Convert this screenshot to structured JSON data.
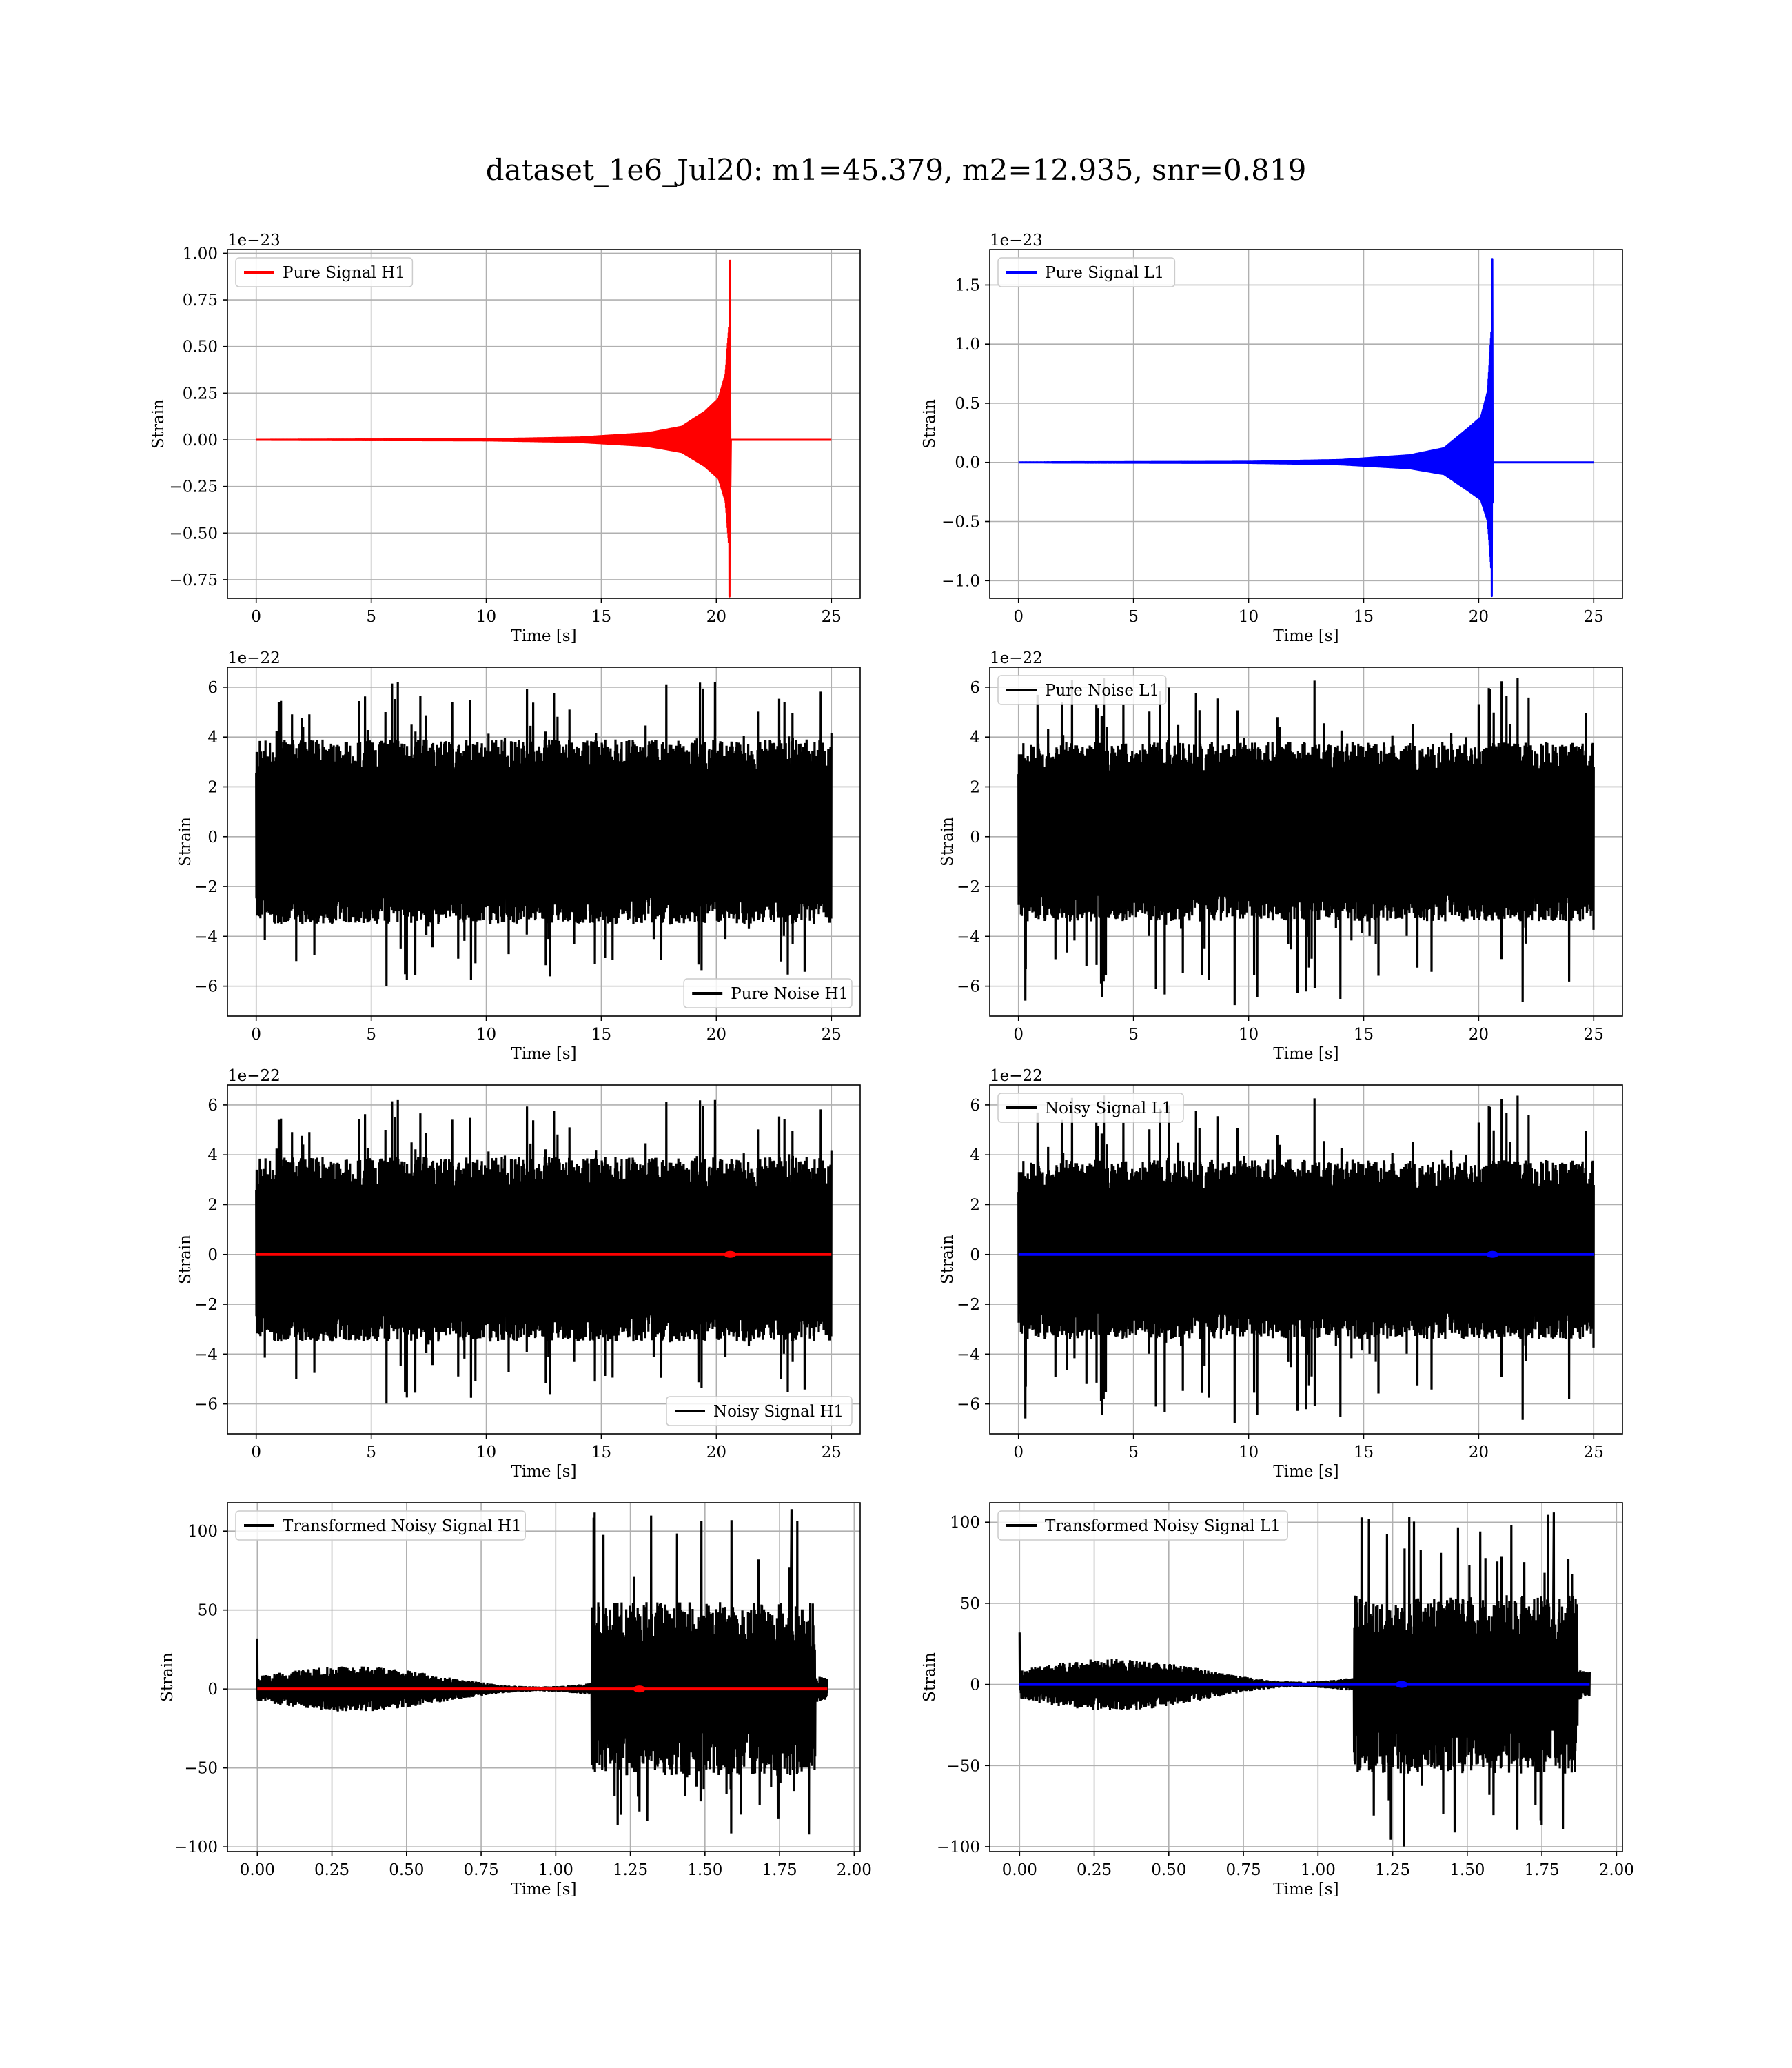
{
  "figure_title": "dataset_1e6_Jul20: m1=45.379, m2=12.935, snr=0.819",
  "chart_data": [
    {
      "type": "line",
      "id": "pure_signal_h1",
      "title": "",
      "xlabel": "Time [s]",
      "ylabel": "Strain",
      "offset_text": "1e−23",
      "xlim": [
        -1.25,
        26.25
      ],
      "ylim": [
        -0.85,
        1.02
      ],
      "xticks": [
        0,
        5,
        10,
        15,
        20,
        25
      ],
      "xtick_labels": [
        "0",
        "5",
        "10",
        "15",
        "20",
        "25"
      ],
      "yticks": [
        -0.75,
        -0.5,
        -0.25,
        0,
        0.25,
        0.5,
        0.75,
        1.0
      ],
      "ytick_labels": [
        "−0.75",
        "−0.50",
        "−0.25",
        "0.00",
        "0.25",
        "0.50",
        "0.75",
        "1.00"
      ],
      "grid": true,
      "legend_position": "upper left",
      "series": [
        {
          "name": "Pure Signal H1",
          "color": "#ff0000",
          "kind": "chirp",
          "t_start": 0,
          "t_merge": 20.6,
          "t_end": 25,
          "peak_pos": 0.96,
          "peak_neg": -0.84,
          "envelope": [
            [
              0,
              0
            ],
            [
              10,
              0.003
            ],
            [
              14,
              0.012
            ],
            [
              17,
              0.035
            ],
            [
              18.5,
              0.07
            ],
            [
              19.5,
              0.15
            ],
            [
              20.1,
              0.22
            ],
            [
              20.4,
              0.35
            ],
            [
              20.55,
              0.6
            ]
          ]
        }
      ]
    },
    {
      "type": "line",
      "id": "pure_signal_l1",
      "title": "",
      "xlabel": "Time [s]",
      "ylabel": "Strain",
      "offset_text": "1e−23",
      "xlim": [
        -1.25,
        26.25
      ],
      "ylim": [
        -1.15,
        1.8
      ],
      "xticks": [
        0,
        5,
        10,
        15,
        20,
        25
      ],
      "xtick_labels": [
        "0",
        "5",
        "10",
        "15",
        "20",
        "25"
      ],
      "yticks": [
        -1.0,
        -0.5,
        0,
        0.5,
        1.0,
        1.5
      ],
      "ytick_labels": [
        "−1.0",
        "−0.5",
        "0.0",
        "0.5",
        "1.0",
        "1.5"
      ],
      "grid": true,
      "legend_position": "upper left",
      "series": [
        {
          "name": "Pure Signal L1",
          "color": "#0000ff",
          "kind": "chirp",
          "t_start": 0,
          "t_merge": 20.6,
          "t_end": 25,
          "peak_pos": 1.72,
          "peak_neg": -1.13,
          "envelope": [
            [
              0,
              0
            ],
            [
              10,
              0.005
            ],
            [
              14,
              0.02
            ],
            [
              17,
              0.06
            ],
            [
              18.5,
              0.12
            ],
            [
              19.5,
              0.28
            ],
            [
              20.1,
              0.38
            ],
            [
              20.4,
              0.6
            ],
            [
              20.55,
              1.1
            ]
          ]
        }
      ]
    },
    {
      "type": "line",
      "id": "pure_noise_h1",
      "title": "",
      "xlabel": "Time [s]",
      "ylabel": "Strain",
      "offset_text": "1e−22",
      "xlim": [
        -1.25,
        26.25
      ],
      "ylim": [
        -7.2,
        6.8
      ],
      "xticks": [
        0,
        5,
        10,
        15,
        20,
        25
      ],
      "xtick_labels": [
        "0",
        "5",
        "10",
        "15",
        "20",
        "25"
      ],
      "yticks": [
        -6,
        -4,
        -2,
        0,
        2,
        4,
        6
      ],
      "ytick_labels": [
        "−6",
        "−4",
        "−2",
        "0",
        "2",
        "4",
        "6"
      ],
      "grid": true,
      "legend_position": "lower right",
      "series": [
        {
          "name": "Pure Noise H1",
          "color": "#000000",
          "kind": "noise",
          "t_start": 0,
          "t_end": 25,
          "band": [
            -3.5,
            3.9
          ],
          "spike_max": 6.2,
          "spike_min": -6.0,
          "seed": 11
        }
      ]
    },
    {
      "type": "line",
      "id": "pure_noise_l1",
      "title": "",
      "xlabel": "Time [s]",
      "ylabel": "Strain",
      "offset_text": "1e−22",
      "xlim": [
        -1.25,
        26.25
      ],
      "ylim": [
        -7.2,
        6.8
      ],
      "xticks": [
        0,
        5,
        10,
        15,
        20,
        25
      ],
      "xtick_labels": [
        "0",
        "5",
        "10",
        "15",
        "20",
        "25"
      ],
      "yticks": [
        -6,
        -4,
        -2,
        0,
        2,
        4,
        6
      ],
      "ytick_labels": [
        "−6",
        "−4",
        "−2",
        "0",
        "2",
        "4",
        "6"
      ],
      "grid": true,
      "legend_position": "upper left",
      "series": [
        {
          "name": "Pure Noise L1",
          "color": "#000000",
          "kind": "noise",
          "t_start": 0,
          "t_end": 25,
          "band": [
            -3.4,
            3.8
          ],
          "spike_max": 6.5,
          "spike_min": -6.8,
          "seed": 23
        }
      ]
    },
    {
      "type": "line",
      "id": "noisy_signal_h1",
      "title": "",
      "xlabel": "Time [s]",
      "ylabel": "Strain",
      "offset_text": "1e−22",
      "xlim": [
        -1.25,
        26.25
      ],
      "ylim": [
        -7.2,
        6.8
      ],
      "xticks": [
        0,
        5,
        10,
        15,
        20,
        25
      ],
      "xtick_labels": [
        "0",
        "5",
        "10",
        "15",
        "20",
        "25"
      ],
      "yticks": [
        -6,
        -4,
        -2,
        0,
        2,
        4,
        6
      ],
      "ytick_labels": [
        "−6",
        "−4",
        "−2",
        "0",
        "2",
        "4",
        "6"
      ],
      "grid": true,
      "legend_position": "lower right",
      "series": [
        {
          "name": "Noisy Signal H1",
          "color": "#000000",
          "kind": "noise",
          "t_start": 0,
          "t_end": 25,
          "band": [
            -3.5,
            3.9
          ],
          "spike_max": 6.2,
          "spike_min": -6.0,
          "seed": 11
        },
        {
          "color": "#ff0000",
          "kind": "flat",
          "t_start": 0,
          "t_end": 25,
          "bump_at": 20.6
        }
      ]
    },
    {
      "type": "line",
      "id": "noisy_signal_l1",
      "title": "",
      "xlabel": "Time [s]",
      "ylabel": "Strain",
      "offset_text": "1e−22",
      "xlim": [
        -1.25,
        26.25
      ],
      "ylim": [
        -7.2,
        6.8
      ],
      "xticks": [
        0,
        5,
        10,
        15,
        20,
        25
      ],
      "xtick_labels": [
        "0",
        "5",
        "10",
        "15",
        "20",
        "25"
      ],
      "yticks": [
        -6,
        -4,
        -2,
        0,
        2,
        4,
        6
      ],
      "ytick_labels": [
        "−6",
        "−4",
        "−2",
        "0",
        "2",
        "4",
        "6"
      ],
      "grid": true,
      "legend_position": "upper left",
      "series": [
        {
          "name": "Noisy Signal L1",
          "color": "#000000",
          "kind": "noise",
          "t_start": 0,
          "t_end": 25,
          "band": [
            -3.4,
            3.8
          ],
          "spike_max": 6.5,
          "spike_min": -6.8,
          "seed": 23
        },
        {
          "color": "#0000ff",
          "kind": "flat",
          "t_start": 0,
          "t_end": 25,
          "bump_at": 20.6
        }
      ]
    },
    {
      "type": "line",
      "id": "transformed_noisy_signal_h1",
      "title": "",
      "xlabel": "Time [s]",
      "ylabel": "Strain",
      "offset_text": "",
      "xlim": [
        -0.1,
        2.02
      ],
      "ylim": [
        -103,
        118
      ],
      "xticks": [
        0,
        0.25,
        0.5,
        0.75,
        1.0,
        1.25,
        1.5,
        1.75,
        2.0
      ],
      "xtick_labels": [
        "0.00",
        "0.25",
        "0.50",
        "0.75",
        "1.00",
        "1.25",
        "1.50",
        "1.75",
        "2.00"
      ],
      "yticks": [
        -100,
        -50,
        0,
        50,
        100
      ],
      "ytick_labels": [
        "−100",
        "−50",
        "0",
        "50",
        "100"
      ],
      "grid": true,
      "legend_position": "upper left",
      "series": [
        {
          "name": "Transformed Noisy Signal H1",
          "color": "#000000",
          "kind": "whitened",
          "t_start": 0,
          "t_end": 1.91,
          "t_burst": 1.12,
          "t_burst_end": 1.87,
          "quiet_amp": 8,
          "burst_amp": 55,
          "peak_pos": 114,
          "peak_neg": -93,
          "seed": 5
        },
        {
          "color": "#ff0000",
          "kind": "flat",
          "t_start": 0,
          "t_end": 1.91,
          "bump_at": 1.28
        }
      ]
    },
    {
      "type": "line",
      "id": "transformed_noisy_signal_l1",
      "title": "",
      "xlabel": "Time [s]",
      "ylabel": "Strain",
      "offset_text": "",
      "xlim": [
        -0.1,
        2.02
      ],
      "ylim": [
        -103,
        112
      ],
      "xticks": [
        0,
        0.25,
        0.5,
        0.75,
        1.0,
        1.25,
        1.5,
        1.75,
        2.0
      ],
      "xtick_labels": [
        "0.00",
        "0.25",
        "0.50",
        "0.75",
        "1.00",
        "1.25",
        "1.50",
        "1.75",
        "2.00"
      ],
      "yticks": [
        -100,
        -50,
        0,
        50,
        100
      ],
      "ytick_labels": [
        "−100",
        "−50",
        "0",
        "50",
        "100"
      ],
      "grid": true,
      "legend_position": "upper left",
      "series": [
        {
          "name": "Transformed Noisy Signal L1",
          "color": "#000000",
          "kind": "whitened",
          "t_start": 0,
          "t_end": 1.91,
          "t_burst": 1.12,
          "t_burst_end": 1.87,
          "quiet_amp": 9,
          "burst_amp": 55,
          "peak_pos": 106,
          "peak_neg": -100,
          "seed": 9
        },
        {
          "color": "#0000ff",
          "kind": "flat",
          "t_start": 0,
          "t_end": 1.91,
          "bump_at": 1.28
        }
      ]
    }
  ]
}
